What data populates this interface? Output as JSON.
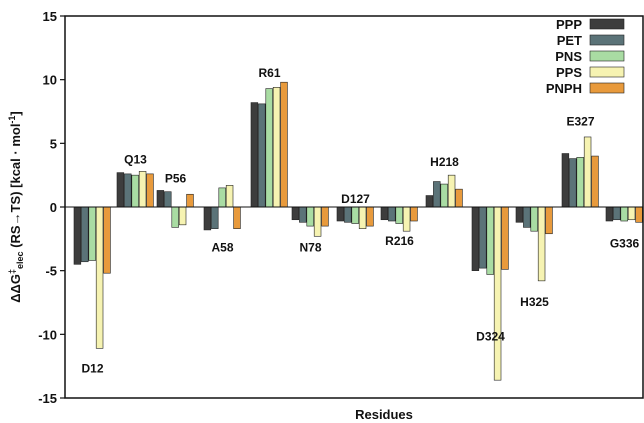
{
  "chart_data": {
    "type": "bar",
    "xlabel": "Residues",
    "ylabel": "ΔΔG‡elec (RS→TS) [kcal · mol⁻¹]",
    "ylabel_parts": {
      "pre": "ΔΔG",
      "sup": "‡",
      "sub": "elec",
      "post": " (RS→TS) [kcal · mol",
      "post_sup": "-1",
      "end": "]"
    },
    "ylim": [
      -15,
      15
    ],
    "yticks": [
      -15,
      -10,
      -5,
      0,
      5,
      10,
      15
    ],
    "legend_position": "top-right",
    "grid": false,
    "series": [
      {
        "name": "PPP",
        "color": "#3d3d3d",
        "values": [
          -4.5,
          2.7,
          1.3,
          -1.8,
          8.2,
          -1.0,
          -1.1,
          -1.0,
          0.9,
          -5.0,
          -1.2,
          4.2,
          -1.1
        ]
      },
      {
        "name": "PET",
        "color": "#5b7378",
        "values": [
          -4.3,
          2.6,
          1.2,
          -1.7,
          8.1,
          -1.2,
          -1.2,
          -1.1,
          2.0,
          -4.8,
          -1.6,
          3.8,
          -1.0
        ]
      },
      {
        "name": "PNS",
        "color": "#a9dca3",
        "values": [
          -4.2,
          2.5,
          -1.6,
          1.5,
          9.3,
          -1.5,
          -1.3,
          -1.3,
          1.8,
          -5.3,
          -1.9,
          3.9,
          -1.1
        ]
      },
      {
        "name": "PPS",
        "color": "#f6f3b2",
        "values": [
          -11.1,
          2.8,
          -1.4,
          1.7,
          9.4,
          -2.3,
          -1.7,
          -1.9,
          2.5,
          -13.6,
          -5.8,
          5.5,
          -1.0
        ]
      },
      {
        "name": "PNPH",
        "color": "#e89a3c",
        "values": [
          -5.2,
          2.6,
          1.0,
          -1.7,
          9.8,
          -1.5,
          -1.5,
          -1.1,
          1.4,
          -4.9,
          -2.1,
          4.0,
          -1.2
        ]
      }
    ],
    "categories": [
      "D12",
      "Q13",
      "P56",
      "A58",
      "R61",
      "N78",
      "D127",
      "R216",
      "H218",
      "D324",
      "H325",
      "E327",
      "G336"
    ],
    "annotations": [
      {
        "text": "D12",
        "x": "D12",
        "y": -12.6
      },
      {
        "text": "Q13",
        "x": "Q13",
        "y": 3.8
      },
      {
        "text": "P56",
        "x": "P56",
        "y": 2.3
      },
      {
        "text": "A58",
        "x": "A58",
        "y": -3.1
      },
      {
        "text": "R61",
        "x": "R61",
        "y": 10.6
      },
      {
        "text": "N78",
        "x": "N78",
        "y": -3.1
      },
      {
        "text": "D127",
        "x": "D127",
        "y": 0.7
      },
      {
        "text": "R216",
        "x": "R216",
        "y": -2.6
      },
      {
        "text": "H218",
        "x": "H218",
        "y": 3.6
      },
      {
        "text": "D324",
        "x": "D324",
        "y": -10.1
      },
      {
        "text": "H325",
        "x": "H325",
        "y": -7.4
      },
      {
        "text": "E327",
        "x": "E327",
        "y": 6.8
      },
      {
        "text": "G336",
        "x": "G336",
        "y": -2.8
      }
    ]
  }
}
